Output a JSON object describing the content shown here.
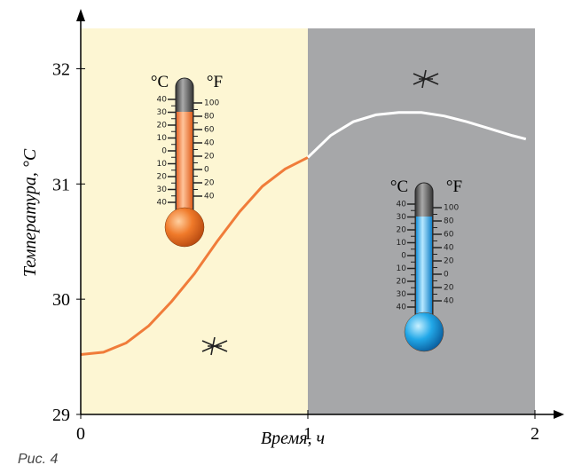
{
  "chart_data": {
    "type": "line",
    "xlabel": "Время, ч",
    "ylabel": "Температура,  °С",
    "caption": "Рис. 4",
    "xlim": [
      0,
      2
    ],
    "ylim": [
      29,
      32.35
    ],
    "xticks": [
      0,
      1,
      2
    ],
    "yticks": [
      29,
      30,
      31,
      32
    ],
    "regions": [
      {
        "x": [
          0,
          1
        ],
        "color": "#fdf6d3"
      },
      {
        "x": [
          1,
          2
        ],
        "color": "#a6a7a9"
      }
    ],
    "series": [
      {
        "color": "#f07c3a",
        "x": [
          0,
          0.1,
          0.2,
          0.3,
          0.4,
          0.5,
          0.6,
          0.7,
          0.8,
          0.9,
          1.0
        ],
        "values": [
          29.52,
          29.54,
          29.62,
          29.77,
          29.98,
          30.22,
          30.5,
          30.76,
          30.98,
          31.13,
          31.23
        ]
      },
      {
        "color": "#ffffff",
        "x": [
          1.0,
          1.1,
          1.2,
          1.3,
          1.4,
          1.5,
          1.6,
          1.7,
          1.8,
          1.9,
          1.96
        ],
        "values": [
          31.23,
          31.42,
          31.54,
          31.6,
          31.62,
          31.62,
          31.59,
          31.54,
          31.48,
          31.42,
          31.39
        ]
      }
    ],
    "thermometer": {
      "c_unit": "°C",
      "f_unit": "°F",
      "c_scale": [
        "40",
        "30",
        "20",
        "10",
        "0",
        "10",
        "20",
        "30",
        "40"
      ],
      "f_scale": [
        "100",
        "80",
        "60",
        "40",
        "20",
        "0",
        "20",
        "40"
      ]
    }
  }
}
